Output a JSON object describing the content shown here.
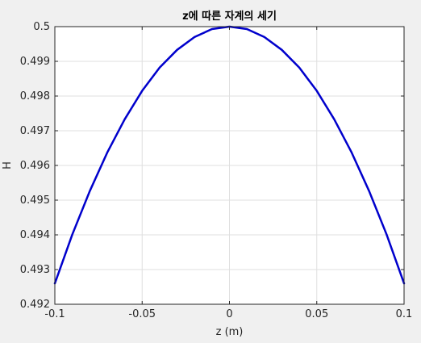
{
  "chart_data": {
    "type": "line",
    "title": "z에 따른 자계의 세기",
    "xlabel": "z (m)",
    "ylabel": "H",
    "xlim": [
      -0.1,
      0.1
    ],
    "ylim": [
      0.492,
      0.5
    ],
    "xticks": [
      "-0.1",
      "-0.05",
      "0",
      "0.05",
      "0.1"
    ],
    "yticks": [
      "0.492",
      "0.493",
      "0.494",
      "0.495",
      "0.496",
      "0.497",
      "0.498",
      "0.499",
      "0.5"
    ],
    "grid": true,
    "series": [
      {
        "color": "#0000cc",
        "x": [
          -0.1,
          -0.09,
          -0.08,
          -0.07,
          -0.06,
          -0.05,
          -0.04,
          -0.03,
          -0.02,
          -0.01,
          0,
          0.01,
          0.02,
          0.03,
          0.04,
          0.05,
          0.06,
          0.07,
          0.08,
          0.09,
          0.1
        ],
        "y": [
          0.4926,
          0.49401,
          0.49526,
          0.49637,
          0.49733,
          0.49815,
          0.49882,
          0.49933,
          0.4997,
          0.49993,
          0.5,
          0.49993,
          0.4997,
          0.49933,
          0.49882,
          0.49815,
          0.49733,
          0.49637,
          0.49526,
          0.49401,
          0.4926
        ]
      }
    ]
  }
}
